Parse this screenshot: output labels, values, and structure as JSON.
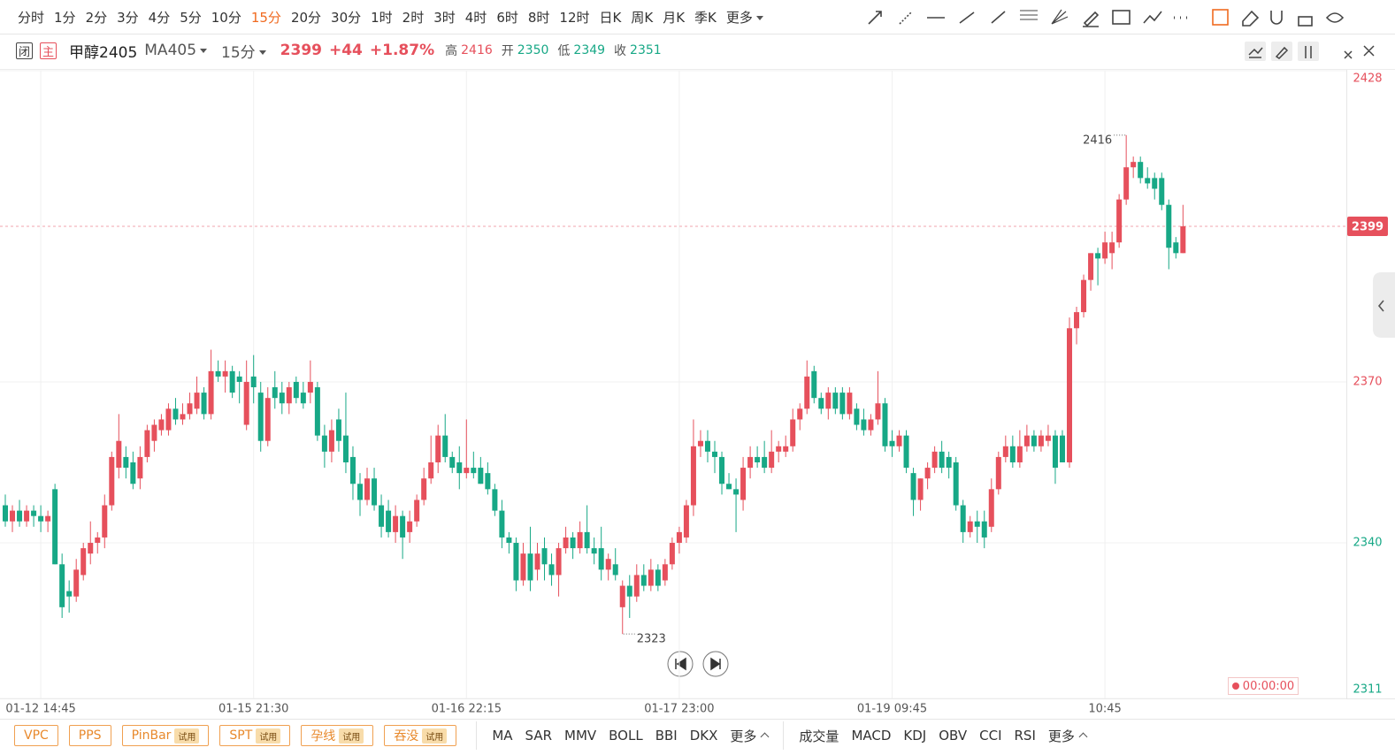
{
  "toolbar": {
    "periods": [
      "分时",
      "1分",
      "2分",
      "3分",
      "4分",
      "5分",
      "10分",
      "15分",
      "20分",
      "30分",
      "1时",
      "2时",
      "3时",
      "4时",
      "6时",
      "8时",
      "12时",
      "日K",
      "周K",
      "月K",
      "季K",
      "更多"
    ],
    "active_period": "15分"
  },
  "header": {
    "icons": [
      "闭",
      "主"
    ],
    "symbol": "甲醇2405",
    "contract": "MA405",
    "period": "15分",
    "price": 2399,
    "change": "+44",
    "change_pct": "+1.87%",
    "stats": [
      {
        "label": "高",
        "value": 2416
      },
      {
        "label": "开",
        "value": 2350
      },
      {
        "label": "低",
        "value": 2349
      },
      {
        "label": "收",
        "value": 2351
      }
    ]
  },
  "chart_data": {
    "type": "candlestick",
    "up_color": "#e6505c",
    "down_color": "#17a886",
    "grid": true,
    "categories": [
      null,
      null,
      null,
      null,
      null,
      "01-12 14:45",
      null,
      null,
      null,
      null,
      null,
      null,
      null,
      null,
      null,
      null,
      null,
      null,
      null,
      null,
      null,
      null,
      null,
      null,
      null,
      null,
      null,
      null,
      null,
      null,
      null,
      null,
      null,
      null,
      null,
      "01-15 21:30",
      null,
      null,
      null,
      null,
      null,
      null,
      null,
      null,
      null,
      null,
      null,
      null,
      null,
      null,
      null,
      null,
      null,
      null,
      null,
      null,
      null,
      null,
      null,
      null,
      null,
      null,
      null,
      null,
      null,
      "01-16 22:15",
      null,
      null,
      null,
      null,
      null,
      null,
      null,
      null,
      null,
      null,
      null,
      null,
      null,
      null,
      null,
      null,
      null,
      null,
      null,
      null,
      null,
      null,
      null,
      null,
      null,
      null,
      null,
      null,
      null,
      "01-17 23:00",
      null,
      null,
      null,
      null,
      null,
      null,
      null,
      null,
      null,
      null,
      null,
      null,
      null,
      null,
      null,
      null,
      null,
      null,
      null,
      null,
      null,
      null,
      null,
      null,
      null,
      null,
      null,
      null,
      null,
      "01-19 09:45",
      null,
      null,
      null,
      null,
      null,
      null,
      null,
      null,
      null,
      null,
      null,
      null,
      null,
      null,
      null,
      null,
      null,
      null,
      null,
      null,
      null,
      null,
      null,
      null,
      null,
      null,
      null,
      null,
      null,
      "10:45",
      null,
      null,
      null,
      null,
      null,
      null,
      null,
      null,
      null,
      null,
      null
    ],
    "open": [
      2347,
      2344,
      2346,
      2344,
      2346,
      2345,
      2344,
      2350,
      2336,
      2331,
      2330,
      2334,
      2338,
      2340,
      2341,
      2347,
      2354,
      2356,
      2355,
      2352,
      2356,
      2359,
      2361,
      2361,
      2365,
      2363,
      2364,
      2365,
      2368,
      2364,
      2372,
      2371,
      2372,
      2371,
      2362,
      2371,
      2368,
      2359,
      2369,
      2368,
      2366,
      2370,
      2368,
      2368,
      2369,
      2360,
      2357,
      2363,
      2360,
      2356,
      2351,
      2348,
      2352,
      2347,
      2346,
      2342,
      2345,
      2342,
      2344,
      2348,
      2352,
      2355,
      2360,
      2356,
      2355,
      2353,
      2354,
      2354,
      2353,
      2350,
      2346,
      2341,
      2340,
      2333,
      2338,
      2335,
      2339,
      2336,
      2334,
      2339,
      2341,
      2339,
      2342,
      2339,
      2339,
      2335,
      2336,
      2328,
      2332,
      2330,
      2334,
      2332,
      2335,
      2333,
      2336,
      2340,
      2341,
      2347,
      2358,
      2359,
      2357,
      2356,
      2351,
      2350,
      2348,
      2354,
      2356,
      2356,
      2354,
      2357,
      2357,
      2358,
      2363,
      2365,
      2372,
      2367,
      2365,
      2368,
      2368,
      2364,
      2365,
      2363,
      2361,
      2363,
      2366,
      2359,
      2358,
      2360,
      2353,
      2348,
      2352,
      2354,
      2357,
      2356,
      2355,
      2347,
      2342,
      2344,
      2344,
      2343,
      2350,
      2356,
      2358,
      2355,
      2358,
      2360,
      2358,
      2359,
      2360,
      2360,
      2355,
      2380,
      2383,
      2389,
      2394,
      2393,
      2394,
      2396,
      2404,
      2410,
      2411,
      2408,
      2408,
      2408,
      2403,
      2396,
      2394
    ],
    "high": [
      2349,
      2347,
      2348,
      2347,
      2347,
      2347,
      2346,
      2351,
      2338,
      2333,
      2337,
      2340,
      2344,
      2342,
      2349,
      2357,
      2364,
      2358,
      2357,
      2358,
      2362,
      2363,
      2364,
      2366,
      2367,
      2366,
      2368,
      2371,
      2369,
      2376,
      2374,
      2374,
      2373,
      2372,
      2374,
      2375,
      2370,
      2369,
      2372,
      2370,
      2370,
      2371,
      2370,
      2374,
      2370,
      2362,
      2363,
      2365,
      2368,
      2358,
      2353,
      2354,
      2354,
      2349,
      2348,
      2347,
      2346,
      2346,
      2349,
      2354,
      2360,
      2362,
      2364,
      2357,
      2358,
      2363,
      2357,
      2356,
      2355,
      2351,
      2348,
      2342,
      2341,
      2340,
      2343,
      2340,
      2341,
      2338,
      2340,
      2343,
      2342,
      2344,
      2347,
      2341,
      2343,
      2338,
      2339,
      2333,
      2334,
      2336,
      2336,
      2337,
      2336,
      2337,
      2341,
      2343,
      2348,
      2363,
      2361,
      2361,
      2359,
      2357,
      2353,
      2352,
      2356,
      2358,
      2358,
      2359,
      2361,
      2359,
      2360,
      2365,
      2366,
      2374,
      2373,
      2368,
      2369,
      2369,
      2369,
      2369,
      2366,
      2365,
      2364,
      2372,
      2367,
      2361,
      2361,
      2361,
      2354,
      2352,
      2355,
      2358,
      2359,
      2357,
      2356,
      2348,
      2345,
      2346,
      2346,
      2352,
      2357,
      2360,
      2360,
      2361,
      2362,
      2361,
      2361,
      2362,
      2361,
      2361,
      2382,
      2384,
      2390,
      2394,
      2395,
      2398,
      2398,
      2405,
      2416,
      2412,
      2412,
      2410,
      2409,
      2409,
      2404,
      2397,
      2403
    ],
    "low": [
      2343,
      2342,
      2343,
      2343,
      2343,
      2342,
      2342,
      2336,
      2326,
      2327,
      2329,
      2333,
      2336,
      2338,
      2339,
      2346,
      2352,
      2352,
      2350,
      2350,
      2355,
      2357,
      2360,
      2360,
      2362,
      2362,
      2363,
      2364,
      2363,
      2363,
      2370,
      2368,
      2367,
      2366,
      2361,
      2366,
      2357,
      2358,
      2365,
      2364,
      2364,
      2366,
      2365,
      2366,
      2359,
      2354,
      2355,
      2357,
      2353,
      2348,
      2345,
      2347,
      2346,
      2341,
      2341,
      2340,
      2337,
      2340,
      2343,
      2347,
      2351,
      2353,
      2355,
      2353,
      2350,
      2352,
      2352,
      2351,
      2349,
      2345,
      2339,
      2338,
      2331,
      2332,
      2331,
      2333,
      2333,
      2332,
      2330,
      2338,
      2337,
      2338,
      2338,
      2336,
      2333,
      2333,
      2333,
      2323,
      2326,
      2329,
      2331,
      2331,
      2331,
      2332,
      2335,
      2338,
      2340,
      2345,
      2356,
      2355,
      2353,
      2349,
      2350,
      2342,
      2346,
      2352,
      2354,
      2353,
      2353,
      2355,
      2356,
      2357,
      2361,
      2364,
      2366,
      2364,
      2363,
      2364,
      2363,
      2363,
      2361,
      2360,
      2360,
      2362,
      2357,
      2356,
      2357,
      2353,
      2345,
      2346,
      2350,
      2353,
      2353,
      2352,
      2346,
      2340,
      2341,
      2340,
      2339,
      2342,
      2349,
      2355,
      2354,
      2354,
      2357,
      2357,
      2357,
      2358,
      2351,
      2355,
      2354,
      2377,
      2382,
      2387,
      2388,
      2392,
      2391,
      2395,
      2403,
      2408,
      2407,
      2406,
      2404,
      2402,
      2391,
      2393,
      2394
    ],
    "close": [
      2344,
      2346,
      2344,
      2346,
      2345,
      2344,
      2345,
      2336,
      2328,
      2330,
      2335,
      2339,
      2340,
      2341,
      2347,
      2356,
      2359,
      2354,
      2351,
      2356,
      2361,
      2362,
      2363,
      2365,
      2363,
      2364,
      2366,
      2368,
      2364,
      2372,
      2371,
      2372,
      2368,
      2370,
      2370,
      2369,
      2359,
      2367,
      2367,
      2366,
      2369,
      2367,
      2366,
      2370,
      2360,
      2357,
      2361,
      2359,
      2355,
      2351,
      2348,
      2352,
      2347,
      2343,
      2342,
      2345,
      2341,
      2344,
      2348,
      2352,
      2355,
      2360,
      2356,
      2354,
      2353,
      2354,
      2353,
      2351,
      2350,
      2346,
      2341,
      2340,
      2333,
      2338,
      2333,
      2338,
      2336,
      2334,
      2339,
      2341,
      2339,
      2342,
      2339,
      2338,
      2335,
      2337,
      2334,
      2332,
      2330,
      2334,
      2332,
      2335,
      2332,
      2336,
      2340,
      2342,
      2347,
      2358,
      2359,
      2357,
      2356,
      2351,
      2350,
      2349,
      2354,
      2356,
      2355,
      2354,
      2357,
      2358,
      2358,
      2363,
      2365,
      2371,
      2367,
      2365,
      2368,
      2365,
      2364,
      2368,
      2362,
      2361,
      2363,
      2366,
      2358,
      2358,
      2360,
      2354,
      2348,
      2352,
      2354,
      2357,
      2354,
      2354,
      2347,
      2342,
      2344,
      2343,
      2341,
      2350,
      2356,
      2358,
      2355,
      2358,
      2360,
      2358,
      2360,
      2360,
      2354,
      2355,
      2380,
      2383,
      2389,
      2394,
      2393,
      2396,
      2396,
      2404,
      2410,
      2411,
      2408,
      2407,
      2406,
      2403,
      2395,
      2394,
      2399
    ],
    "ylim": [
      2311,
      2428
    ],
    "yticks": [
      2311,
      2340,
      2370,
      2428
    ],
    "last_price": 2399,
    "high_marker": 2416,
    "low_marker": 2323
  },
  "playback": {
    "timer": "00:00:00"
  },
  "indicators": {
    "patterns": [
      {
        "name": "VPC"
      },
      {
        "name": "PPS"
      },
      {
        "name": "PinBar",
        "badge": "试用"
      },
      {
        "name": "SPT",
        "badge": "试用"
      },
      {
        "name": "孕线",
        "badge": "试用"
      },
      {
        "name": "吞没",
        "badge": "试用"
      }
    ],
    "main": [
      "MA",
      "SAR",
      "MMV",
      "BOLL",
      "BBI",
      "DKX",
      "更多"
    ],
    "sub": [
      "成交量",
      "MACD",
      "KDJ",
      "OBV",
      "CCI",
      "RSI",
      "更多"
    ]
  }
}
